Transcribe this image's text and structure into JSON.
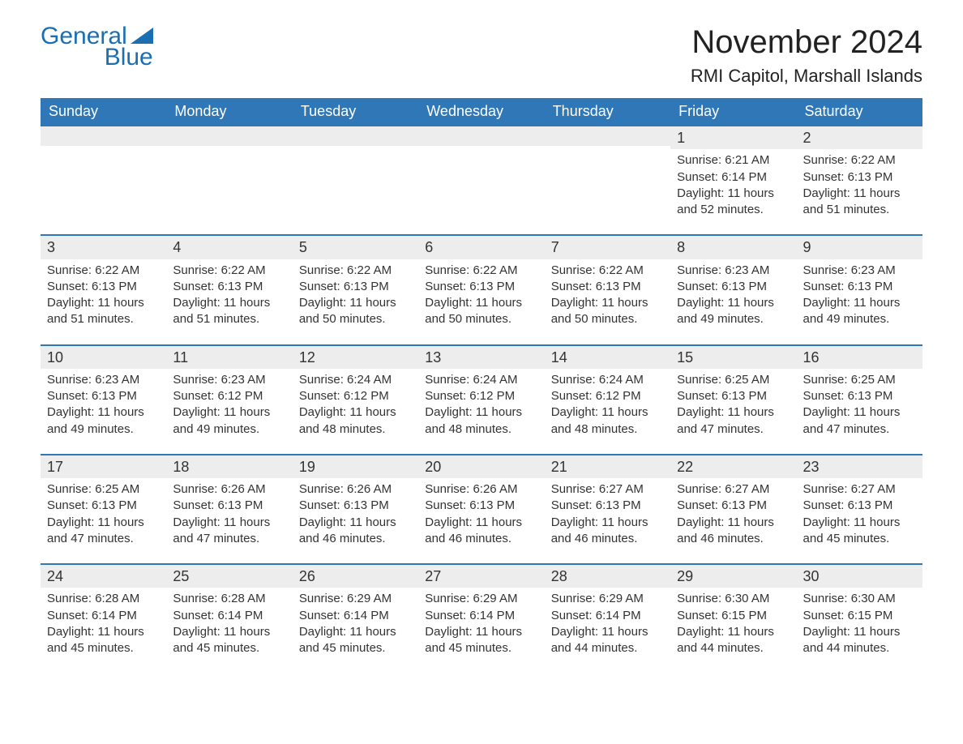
{
  "logo": {
    "word1": "General",
    "word2": "Blue",
    "color": "#1a6fb3"
  },
  "title": "November 2024",
  "location": "RMI Capitol, Marshall Islands",
  "colors": {
    "header_bg": "#2f77b7",
    "header_text": "#ffffff",
    "band_bg": "#ededed",
    "band_border": "#2f77b7",
    "body_text": "#333333",
    "page_bg": "#ffffff"
  },
  "days_of_week": [
    "Sunday",
    "Monday",
    "Tuesday",
    "Wednesday",
    "Thursday",
    "Friday",
    "Saturday"
  ],
  "weeks": [
    [
      {
        "empty": true
      },
      {
        "empty": true
      },
      {
        "empty": true
      },
      {
        "empty": true
      },
      {
        "empty": true
      },
      {
        "day": "1",
        "sunrise": "Sunrise: 6:21 AM",
        "sunset": "Sunset: 6:14 PM",
        "daylight1": "Daylight: 11 hours",
        "daylight2": "and 52 minutes."
      },
      {
        "day": "2",
        "sunrise": "Sunrise: 6:22 AM",
        "sunset": "Sunset: 6:13 PM",
        "daylight1": "Daylight: 11 hours",
        "daylight2": "and 51 minutes."
      }
    ],
    [
      {
        "day": "3",
        "sunrise": "Sunrise: 6:22 AM",
        "sunset": "Sunset: 6:13 PM",
        "daylight1": "Daylight: 11 hours",
        "daylight2": "and 51 minutes."
      },
      {
        "day": "4",
        "sunrise": "Sunrise: 6:22 AM",
        "sunset": "Sunset: 6:13 PM",
        "daylight1": "Daylight: 11 hours",
        "daylight2": "and 51 minutes."
      },
      {
        "day": "5",
        "sunrise": "Sunrise: 6:22 AM",
        "sunset": "Sunset: 6:13 PM",
        "daylight1": "Daylight: 11 hours",
        "daylight2": "and 50 minutes."
      },
      {
        "day": "6",
        "sunrise": "Sunrise: 6:22 AM",
        "sunset": "Sunset: 6:13 PM",
        "daylight1": "Daylight: 11 hours",
        "daylight2": "and 50 minutes."
      },
      {
        "day": "7",
        "sunrise": "Sunrise: 6:22 AM",
        "sunset": "Sunset: 6:13 PM",
        "daylight1": "Daylight: 11 hours",
        "daylight2": "and 50 minutes."
      },
      {
        "day": "8",
        "sunrise": "Sunrise: 6:23 AM",
        "sunset": "Sunset: 6:13 PM",
        "daylight1": "Daylight: 11 hours",
        "daylight2": "and 49 minutes."
      },
      {
        "day": "9",
        "sunrise": "Sunrise: 6:23 AM",
        "sunset": "Sunset: 6:13 PM",
        "daylight1": "Daylight: 11 hours",
        "daylight2": "and 49 minutes."
      }
    ],
    [
      {
        "day": "10",
        "sunrise": "Sunrise: 6:23 AM",
        "sunset": "Sunset: 6:13 PM",
        "daylight1": "Daylight: 11 hours",
        "daylight2": "and 49 minutes."
      },
      {
        "day": "11",
        "sunrise": "Sunrise: 6:23 AM",
        "sunset": "Sunset: 6:12 PM",
        "daylight1": "Daylight: 11 hours",
        "daylight2": "and 49 minutes."
      },
      {
        "day": "12",
        "sunrise": "Sunrise: 6:24 AM",
        "sunset": "Sunset: 6:12 PM",
        "daylight1": "Daylight: 11 hours",
        "daylight2": "and 48 minutes."
      },
      {
        "day": "13",
        "sunrise": "Sunrise: 6:24 AM",
        "sunset": "Sunset: 6:12 PM",
        "daylight1": "Daylight: 11 hours",
        "daylight2": "and 48 minutes."
      },
      {
        "day": "14",
        "sunrise": "Sunrise: 6:24 AM",
        "sunset": "Sunset: 6:12 PM",
        "daylight1": "Daylight: 11 hours",
        "daylight2": "and 48 minutes."
      },
      {
        "day": "15",
        "sunrise": "Sunrise: 6:25 AM",
        "sunset": "Sunset: 6:13 PM",
        "daylight1": "Daylight: 11 hours",
        "daylight2": "and 47 minutes."
      },
      {
        "day": "16",
        "sunrise": "Sunrise: 6:25 AM",
        "sunset": "Sunset: 6:13 PM",
        "daylight1": "Daylight: 11 hours",
        "daylight2": "and 47 minutes."
      }
    ],
    [
      {
        "day": "17",
        "sunrise": "Sunrise: 6:25 AM",
        "sunset": "Sunset: 6:13 PM",
        "daylight1": "Daylight: 11 hours",
        "daylight2": "and 47 minutes."
      },
      {
        "day": "18",
        "sunrise": "Sunrise: 6:26 AM",
        "sunset": "Sunset: 6:13 PM",
        "daylight1": "Daylight: 11 hours",
        "daylight2": "and 47 minutes."
      },
      {
        "day": "19",
        "sunrise": "Sunrise: 6:26 AM",
        "sunset": "Sunset: 6:13 PM",
        "daylight1": "Daylight: 11 hours",
        "daylight2": "and 46 minutes."
      },
      {
        "day": "20",
        "sunrise": "Sunrise: 6:26 AM",
        "sunset": "Sunset: 6:13 PM",
        "daylight1": "Daylight: 11 hours",
        "daylight2": "and 46 minutes."
      },
      {
        "day": "21",
        "sunrise": "Sunrise: 6:27 AM",
        "sunset": "Sunset: 6:13 PM",
        "daylight1": "Daylight: 11 hours",
        "daylight2": "and 46 minutes."
      },
      {
        "day": "22",
        "sunrise": "Sunrise: 6:27 AM",
        "sunset": "Sunset: 6:13 PM",
        "daylight1": "Daylight: 11 hours",
        "daylight2": "and 46 minutes."
      },
      {
        "day": "23",
        "sunrise": "Sunrise: 6:27 AM",
        "sunset": "Sunset: 6:13 PM",
        "daylight1": "Daylight: 11 hours",
        "daylight2": "and 45 minutes."
      }
    ],
    [
      {
        "day": "24",
        "sunrise": "Sunrise: 6:28 AM",
        "sunset": "Sunset: 6:14 PM",
        "daylight1": "Daylight: 11 hours",
        "daylight2": "and 45 minutes."
      },
      {
        "day": "25",
        "sunrise": "Sunrise: 6:28 AM",
        "sunset": "Sunset: 6:14 PM",
        "daylight1": "Daylight: 11 hours",
        "daylight2": "and 45 minutes."
      },
      {
        "day": "26",
        "sunrise": "Sunrise: 6:29 AM",
        "sunset": "Sunset: 6:14 PM",
        "daylight1": "Daylight: 11 hours",
        "daylight2": "and 45 minutes."
      },
      {
        "day": "27",
        "sunrise": "Sunrise: 6:29 AM",
        "sunset": "Sunset: 6:14 PM",
        "daylight1": "Daylight: 11 hours",
        "daylight2": "and 45 minutes."
      },
      {
        "day": "28",
        "sunrise": "Sunrise: 6:29 AM",
        "sunset": "Sunset: 6:14 PM",
        "daylight1": "Daylight: 11 hours",
        "daylight2": "and 44 minutes."
      },
      {
        "day": "29",
        "sunrise": "Sunrise: 6:30 AM",
        "sunset": "Sunset: 6:15 PM",
        "daylight1": "Daylight: 11 hours",
        "daylight2": "and 44 minutes."
      },
      {
        "day": "30",
        "sunrise": "Sunrise: 6:30 AM",
        "sunset": "Sunset: 6:15 PM",
        "daylight1": "Daylight: 11 hours",
        "daylight2": "and 44 minutes."
      }
    ]
  ]
}
